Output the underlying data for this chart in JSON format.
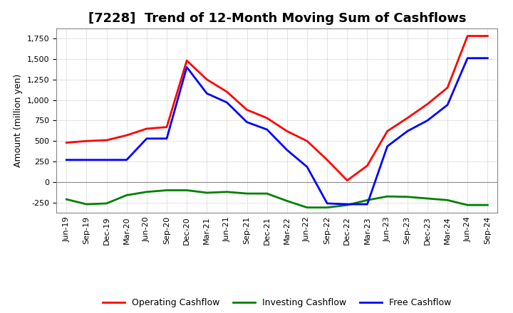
{
  "title": "[7228]  Trend of 12-Month Moving Sum of Cashflows",
  "ylabel": "Amount (million yen)",
  "x_labels": [
    "Jun-19",
    "Sep-19",
    "Dec-19",
    "Mar-20",
    "Jun-20",
    "Sep-20",
    "Dec-20",
    "Mar-21",
    "Jun-21",
    "Sep-21",
    "Dec-21",
    "Mar-22",
    "Jun-22",
    "Sep-22",
    "Dec-22",
    "Mar-23",
    "Jun-23",
    "Sep-23",
    "Dec-23",
    "Mar-24",
    "Jun-24",
    "Sep-24"
  ],
  "operating": [
    480,
    500,
    510,
    570,
    650,
    670,
    1480,
    1250,
    1100,
    880,
    780,
    620,
    500,
    270,
    20,
    200,
    620,
    780,
    950,
    1150,
    1780,
    1780
  ],
  "investing": [
    -210,
    -270,
    -260,
    -160,
    -120,
    -100,
    -100,
    -130,
    -120,
    -140,
    -140,
    -230,
    -310,
    -310,
    -280,
    -220,
    -175,
    -180,
    -200,
    -220,
    -280,
    -280
  ],
  "free": [
    270,
    270,
    270,
    270,
    530,
    530,
    1400,
    1080,
    970,
    730,
    640,
    390,
    185,
    -260,
    -270,
    -270,
    435,
    620,
    750,
    940,
    1510,
    1510
  ],
  "operating_color": "#ff0000",
  "investing_color": "#008000",
  "free_color": "#0000ff",
  "ylim_min": -375,
  "ylim_max": 1875,
  "yticks": [
    -250,
    0,
    250,
    500,
    750,
    1000,
    1250,
    1500,
    1750
  ],
  "bg_color": "#ffffff",
  "plot_bg_color": "#ffffff",
  "grid_color": "#aaaaaa",
  "title_fontsize": 13,
  "ylabel_fontsize": 9,
  "tick_fontsize": 8
}
